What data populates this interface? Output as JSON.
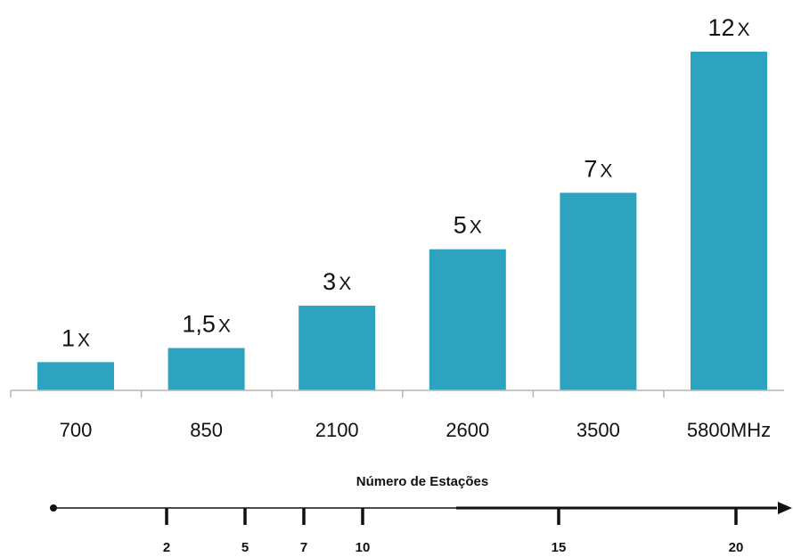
{
  "chart_data": {
    "type": "bar",
    "categories": [
      "700",
      "850",
      "2100",
      "2600",
      "3500",
      "5800MHz"
    ],
    "values": [
      1,
      1.5,
      3,
      5,
      7,
      12
    ],
    "value_labels": [
      "1",
      "1,5",
      "3",
      "5",
      "7",
      "12"
    ],
    "value_suffix": "X",
    "bar_color": "#2ea3bf",
    "ylim": [
      0,
      12
    ],
    "scale": {
      "title": "Número de Estações",
      "ticks": [
        2,
        5,
        7,
        10,
        15,
        20
      ],
      "range": [
        0,
        20
      ]
    }
  }
}
